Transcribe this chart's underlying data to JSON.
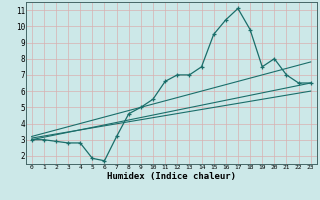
{
  "title": "",
  "xlabel": "Humidex (Indice chaleur)",
  "bg_color": "#cce8e8",
  "grid_color": "#d8b0b0",
  "line_color": "#1a6e6a",
  "xlim": [
    -0.5,
    23.5
  ],
  "ylim": [
    1.5,
    11.5
  ],
  "xticks": [
    0,
    1,
    2,
    3,
    4,
    5,
    6,
    7,
    8,
    9,
    10,
    11,
    12,
    13,
    14,
    15,
    16,
    17,
    18,
    19,
    20,
    21,
    22,
    23
  ],
  "yticks": [
    2,
    3,
    4,
    5,
    6,
    7,
    8,
    9,
    10,
    11
  ],
  "main_line_x": [
    0,
    1,
    2,
    3,
    4,
    5,
    6,
    7,
    8,
    9,
    10,
    11,
    12,
    13,
    14,
    15,
    16,
    17,
    18,
    19,
    20,
    21,
    22,
    23
  ],
  "main_line_y": [
    3.0,
    3.0,
    2.9,
    2.8,
    2.8,
    1.85,
    1.7,
    3.2,
    4.6,
    5.0,
    5.5,
    6.6,
    7.0,
    7.0,
    7.5,
    9.5,
    10.4,
    11.1,
    9.8,
    7.5,
    8.0,
    7.0,
    6.5,
    6.5
  ],
  "reg_line1_x": [
    0,
    23
  ],
  "reg_line1_y": [
    3.0,
    6.5
  ],
  "reg_line2_x": [
    0,
    23
  ],
  "reg_line2_y": [
    3.1,
    6.0
  ],
  "reg_line3_x": [
    0,
    23
  ],
  "reg_line3_y": [
    3.2,
    7.8
  ]
}
